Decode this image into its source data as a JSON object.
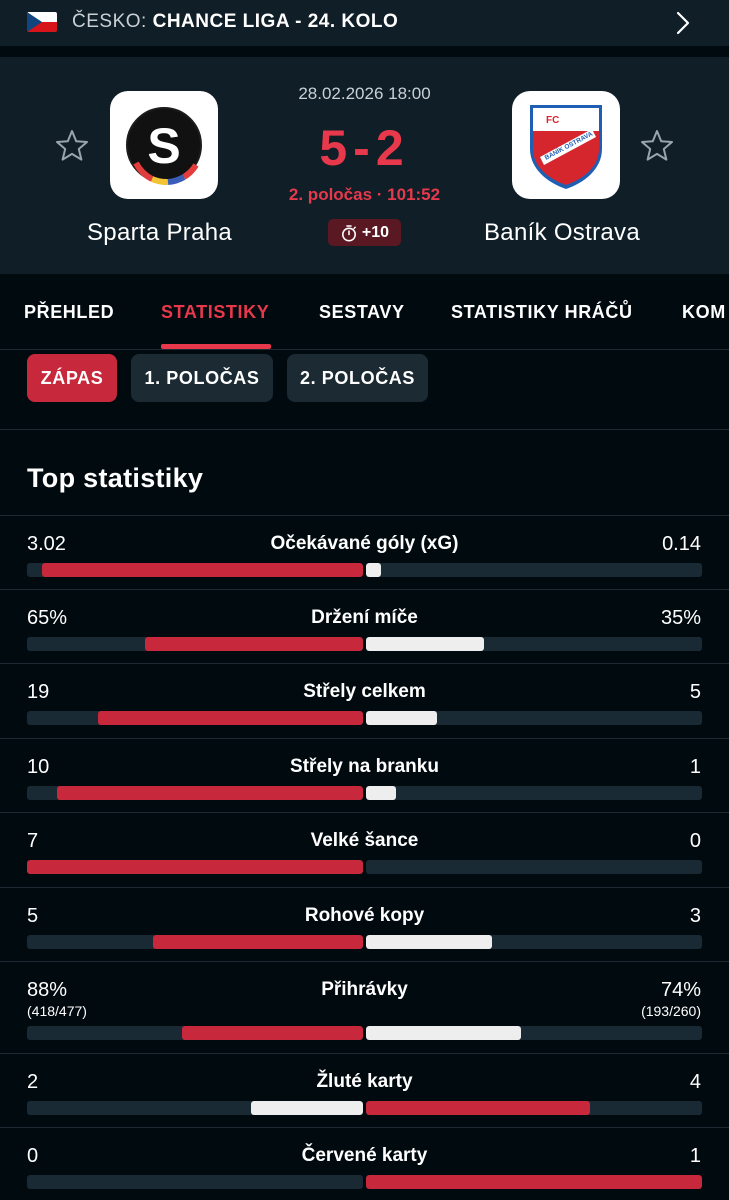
{
  "topbar": {
    "country": "ČESKO:",
    "competition": "CHANCE LIGA - 24. KOLO"
  },
  "match": {
    "kickoff": "28.02.2026 18:00",
    "score": "5-2",
    "period": "2. poločas · 101:52",
    "added_time": "+10",
    "home": {
      "name": "Sparta Praha",
      "logo_letter": "S"
    },
    "away": {
      "name": "Baník Ostrava",
      "logo_text_top": "FC",
      "logo_text_band": "BANÍK OSTRAVA"
    }
  },
  "tabs": [
    "PŘEHLED",
    "STATISTIKY",
    "SESTAVY",
    "STATISTIKY HRÁČŮ",
    "KOM"
  ],
  "active_tab": "STATISTIKY",
  "segments": [
    "ZÁPAS",
    "1. POLOČAS",
    "2. POLOČAS"
  ],
  "active_segment": "ZÁPAS",
  "section_title": "Top statistiky",
  "colors": {
    "accent": "#e8384c",
    "bar_red": "#c8283c",
    "bar_white": "#eeeeee",
    "track": "#1a2a34"
  },
  "stats": [
    {
      "label": "Očekávané góly (xG)",
      "home": "3.02",
      "away": "0.14",
      "home_share": 0.956,
      "away_share": 0.044,
      "leader": "home"
    },
    {
      "label": "Držení míče",
      "home": "65%",
      "away": "35%",
      "home_share": 0.65,
      "away_share": 0.35,
      "leader": "home"
    },
    {
      "label": "Střely celkem",
      "home": "19",
      "away": "5",
      "home_share": 0.79,
      "away_share": 0.21,
      "leader": "home"
    },
    {
      "label": "Střely na branku",
      "home": "10",
      "away": "1",
      "home_share": 0.91,
      "away_share": 0.09,
      "leader": "home"
    },
    {
      "label": "Velké šance",
      "home": "7",
      "away": "0",
      "home_share": 1.0,
      "away_share": 0.0,
      "leader": "home"
    },
    {
      "label": "Rohové kopy",
      "home": "5",
      "away": "3",
      "home_share": 0.625,
      "away_share": 0.375,
      "leader": "home"
    },
    {
      "label": "Přihrávky",
      "home": "88%",
      "away": "74%",
      "home_sub": "(418/477)",
      "away_sub": "(193/260)",
      "home_share": 0.54,
      "away_share": 0.46,
      "leader": "home"
    },
    {
      "label": "Žluté karty",
      "home": "2",
      "away": "4",
      "home_share": 0.333,
      "away_share": 0.667,
      "leader": "away"
    },
    {
      "label": "Červené karty",
      "home": "0",
      "away": "1",
      "home_share": 0.0,
      "away_share": 1.0,
      "leader": "away"
    }
  ]
}
